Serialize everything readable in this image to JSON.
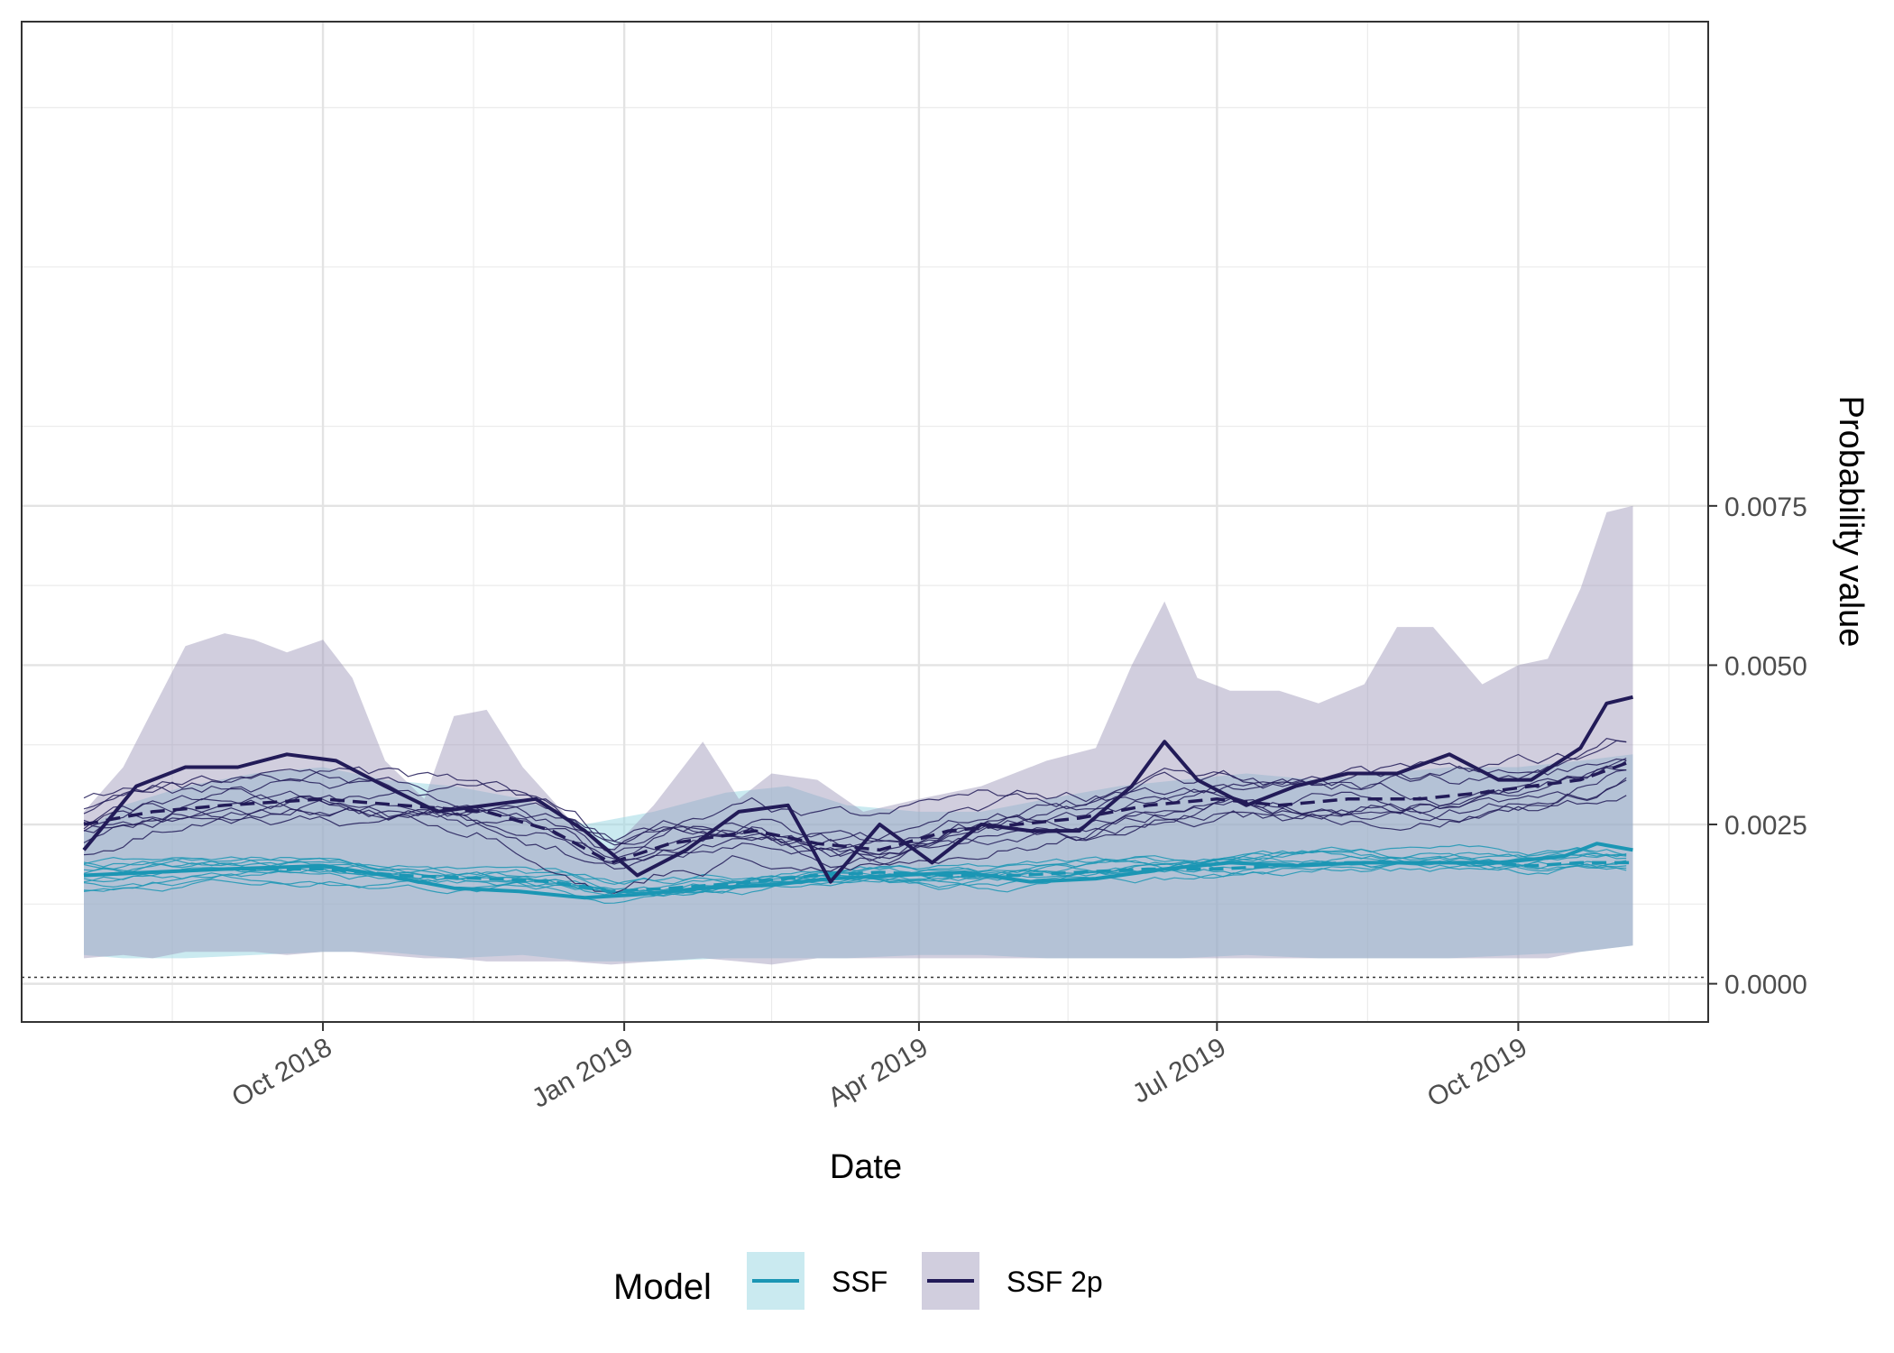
{
  "chart_data": {
    "type": "line",
    "title": "",
    "xlabel": "Date",
    "ylabel": "Probability value",
    "x_range": [
      "2018-07-01",
      "2019-11-28"
    ],
    "y_range": [
      -0.0006,
      0.0151
    ],
    "y_axis_position": "right",
    "grid": true,
    "x_ticks": [
      {
        "date": "2018-10-01",
        "label": "Oct 2018"
      },
      {
        "date": "2019-01-01",
        "label": "Jan 2019"
      },
      {
        "date": "2019-04-01",
        "label": "Apr 2019"
      },
      {
        "date": "2019-07-01",
        "label": "Jul 2019"
      },
      {
        "date": "2019-10-01",
        "label": "Oct 2019"
      }
    ],
    "y_ticks": [
      {
        "value": 0.0,
        "label": "0.0000"
      },
      {
        "value": 0.0025,
        "label": "0.0025"
      },
      {
        "value": 0.005,
        "label": "0.0050"
      },
      {
        "value": 0.0075,
        "label": "0.0075"
      }
    ],
    "reference_line": {
      "y": 0.0001,
      "style": "dotted"
    },
    "legend": {
      "title": "Model",
      "position": "bottom",
      "entries": [
        {
          "label": "SSF",
          "color": "#1b96b4",
          "fill": "#9fd8e4"
        },
        {
          "label": "SSF 2p",
          "color": "#221b58",
          "fill": "#9a92b6"
        }
      ]
    },
    "series": [
      {
        "name": "SSF",
        "color": "#1b96b4",
        "band_color": "#9fd8e4",
        "band": {
          "dates": [
            "2018-07-20",
            "2018-08-01",
            "2018-08-20",
            "2018-09-10",
            "2018-10-01",
            "2018-10-20",
            "2018-11-10",
            "2018-12-01",
            "2018-12-20",
            "2019-01-10",
            "2019-02-01",
            "2019-02-20",
            "2019-03-10",
            "2019-04-01",
            "2019-04-20",
            "2019-05-10",
            "2019-06-01",
            "2019-06-20",
            "2019-07-10",
            "2019-08-01",
            "2019-08-20",
            "2019-09-10",
            "2019-10-01",
            "2019-10-20",
            "2019-11-05"
          ],
          "upper": [
            0.0024,
            0.0028,
            0.0031,
            0.0033,
            0.0034,
            0.0032,
            0.0031,
            0.0029,
            0.0025,
            0.0027,
            0.003,
            0.0031,
            0.0028,
            0.0027,
            0.0027,
            0.0029,
            0.0031,
            0.0032,
            0.0033,
            0.0032,
            0.0033,
            0.0034,
            0.0034,
            0.0035,
            0.0036
          ],
          "lower": [
            0.00045,
            0.0004,
            0.0004,
            0.00045,
            0.0005,
            0.0005,
            0.0004,
            0.00045,
            0.00035,
            0.00035,
            0.0004,
            0.0004,
            0.0004,
            0.00045,
            0.00045,
            0.0004,
            0.0004,
            0.0004,
            0.00045,
            0.0004,
            0.0004,
            0.0004,
            0.00045,
            0.0005,
            0.0006
          ]
        },
        "median": {
          "dates": [
            "2018-07-20",
            "2018-08-10",
            "2018-09-01",
            "2018-10-01",
            "2018-10-25",
            "2018-11-20",
            "2018-12-10",
            "2018-12-28",
            "2019-01-15",
            "2019-02-10",
            "2019-03-01",
            "2019-03-20",
            "2019-04-10",
            "2019-05-01",
            "2019-05-20",
            "2019-06-10",
            "2019-07-01",
            "2019-07-20",
            "2019-08-10",
            "2019-09-01",
            "2019-09-20",
            "2019-10-05",
            "2019-10-20",
            "2019-11-05"
          ],
          "values": [
            0.0017,
            0.00175,
            0.0018,
            0.0018,
            0.0017,
            0.00165,
            0.0016,
            0.00145,
            0.0015,
            0.0016,
            0.0017,
            0.00175,
            0.0017,
            0.0017,
            0.00175,
            0.0018,
            0.0018,
            0.00185,
            0.0019,
            0.0019,
            0.0019,
            0.00185,
            0.0019,
            0.0019
          ]
        },
        "observed": {
          "dates": [
            "2018-07-20",
            "2018-08-10",
            "2018-09-01",
            "2018-10-01",
            "2018-10-20",
            "2018-11-10",
            "2018-11-30",
            "2018-12-20",
            "2019-01-05",
            "2019-01-25",
            "2019-02-15",
            "2019-03-05",
            "2019-03-25",
            "2019-04-15",
            "2019-05-05",
            "2019-05-25",
            "2019-06-15",
            "2019-07-05",
            "2019-07-25",
            "2019-08-15",
            "2019-09-05",
            "2019-09-25",
            "2019-10-15",
            "2019-10-25",
            "2019-11-05"
          ],
          "values": [
            0.0017,
            0.00175,
            0.0018,
            0.00185,
            0.0017,
            0.0015,
            0.00145,
            0.00135,
            0.0014,
            0.0015,
            0.00155,
            0.00165,
            0.0017,
            0.00175,
            0.0016,
            0.00165,
            0.0018,
            0.0019,
            0.00185,
            0.0019,
            0.0019,
            0.0019,
            0.002,
            0.0022,
            0.0021
          ]
        },
        "sample_count": 10
      },
      {
        "name": "SSF 2p",
        "color": "#221b58",
        "band_color": "#9a92b6",
        "band": {
          "dates": [
            "2018-07-20",
            "2018-08-01",
            "2018-08-10",
            "2018-08-20",
            "2018-09-01",
            "2018-09-10",
            "2018-09-20",
            "2018-10-01",
            "2018-10-10",
            "2018-10-20",
            "2018-11-01",
            "2018-11-10",
            "2018-11-20",
            "2018-12-01",
            "2018-12-15",
            "2018-12-28",
            "2019-01-10",
            "2019-01-25",
            "2019-02-05",
            "2019-02-15",
            "2019-03-01",
            "2019-03-15",
            "2019-04-01",
            "2019-04-20",
            "2019-05-10",
            "2019-05-25",
            "2019-06-05",
            "2019-06-15",
            "2019-06-25",
            "2019-07-05",
            "2019-07-20",
            "2019-08-01",
            "2019-08-15",
            "2019-08-25",
            "2019-09-05",
            "2019-09-20",
            "2019-10-01",
            "2019-10-10",
            "2019-10-20",
            "2019-10-28",
            "2019-11-05"
          ],
          "upper": [
            0.0027,
            0.0034,
            0.0043,
            0.0053,
            0.0055,
            0.0054,
            0.0052,
            0.0054,
            0.0048,
            0.0035,
            0.0029,
            0.0042,
            0.0043,
            0.0034,
            0.0026,
            0.0021,
            0.0028,
            0.0038,
            0.0029,
            0.0033,
            0.0032,
            0.0027,
            0.0029,
            0.0031,
            0.0035,
            0.0037,
            0.005,
            0.006,
            0.0048,
            0.0046,
            0.0046,
            0.0044,
            0.0047,
            0.0056,
            0.0056,
            0.0047,
            0.005,
            0.0051,
            0.0062,
            0.0074,
            0.0075
          ],
          "lower": [
            0.0004,
            0.00045,
            0.0004,
            0.0005,
            0.0005,
            0.0005,
            0.00045,
            0.0005,
            0.0005,
            0.00045,
            0.0004,
            0.0004,
            0.00035,
            0.00035,
            0.00035,
            0.0003,
            0.00035,
            0.0004,
            0.00035,
            0.0003,
            0.0004,
            0.0004,
            0.0004,
            0.0004,
            0.0004,
            0.0004,
            0.0004,
            0.0004,
            0.0004,
            0.0004,
            0.0004,
            0.0004,
            0.0004,
            0.0004,
            0.0004,
            0.0004,
            0.0004,
            0.0004,
            0.0005,
            0.00055,
            0.0006
          ]
        },
        "median": {
          "dates": [
            "2018-07-20",
            "2018-08-10",
            "2018-09-01",
            "2018-10-01",
            "2018-10-25",
            "2018-11-20",
            "2018-12-10",
            "2018-12-28",
            "2019-01-15",
            "2019-02-10",
            "2019-03-01",
            "2019-03-20",
            "2019-04-10",
            "2019-05-01",
            "2019-05-20",
            "2019-06-10",
            "2019-07-01",
            "2019-07-20",
            "2019-08-10",
            "2019-09-01",
            "2019-09-20",
            "2019-10-05",
            "2019-10-20",
            "2019-11-05"
          ],
          "values": [
            0.0025,
            0.0027,
            0.0028,
            0.0029,
            0.0028,
            0.0027,
            0.0024,
            0.0019,
            0.0022,
            0.0024,
            0.0022,
            0.0021,
            0.0024,
            0.0025,
            0.0026,
            0.0028,
            0.0029,
            0.0028,
            0.0029,
            0.0029,
            0.003,
            0.0031,
            0.0032,
            0.0035
          ]
        },
        "observed": {
          "dates": [
            "2018-07-20",
            "2018-08-05",
            "2018-08-20",
            "2018-09-05",
            "2018-09-20",
            "2018-10-05",
            "2018-10-20",
            "2018-11-05",
            "2018-11-20",
            "2018-12-05",
            "2018-12-20",
            "2019-01-05",
            "2019-01-20",
            "2019-02-05",
            "2019-02-20",
            "2019-03-05",
            "2019-03-20",
            "2019-04-05",
            "2019-04-20",
            "2019-05-05",
            "2019-05-20",
            "2019-06-05",
            "2019-06-15",
            "2019-06-25",
            "2019-07-10",
            "2019-07-25",
            "2019-08-10",
            "2019-08-25",
            "2019-09-10",
            "2019-09-25",
            "2019-10-05",
            "2019-10-20",
            "2019-10-28",
            "2019-11-05"
          ],
          "values": [
            0.0021,
            0.0031,
            0.0034,
            0.0034,
            0.0036,
            0.0035,
            0.0031,
            0.0027,
            0.0028,
            0.0029,
            0.0024,
            0.0017,
            0.0021,
            0.0027,
            0.0028,
            0.0016,
            0.0025,
            0.0019,
            0.0025,
            0.0024,
            0.0024,
            0.0031,
            0.0038,
            0.0032,
            0.0028,
            0.0031,
            0.0033,
            0.0033,
            0.0036,
            0.0032,
            0.0032,
            0.0037,
            0.0044,
            0.0045
          ]
        },
        "sample_count": 10
      }
    ]
  }
}
